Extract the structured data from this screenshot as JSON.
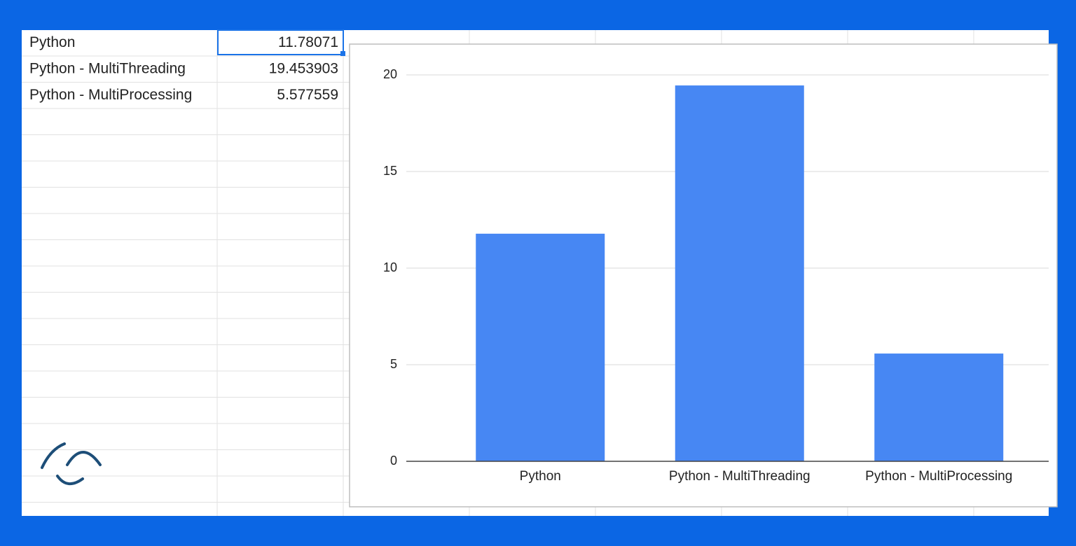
{
  "table": {
    "rows": [
      [
        "Python",
        11.78071
      ],
      [
        "Python - MultiThreading",
        19.453903
      ],
      [
        "Python - MultiProcessing",
        5.577559
      ]
    ]
  },
  "chart_data": {
    "type": "bar",
    "categories": [
      "Python",
      "Python - MultiThreading",
      "Python - MultiProcessing"
    ],
    "values": [
      11.78071,
      19.453903,
      5.577559
    ],
    "color": "#4787f3",
    "ylim": [
      0,
      20
    ],
    "yticks": [
      0,
      5,
      10,
      15,
      20
    ],
    "grid": true
  }
}
